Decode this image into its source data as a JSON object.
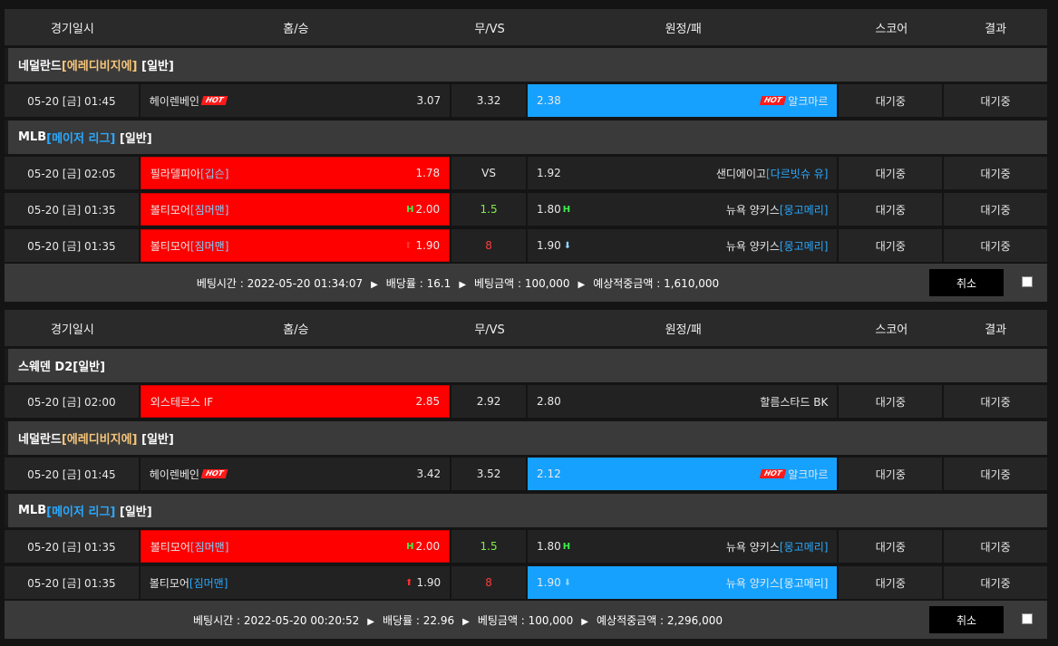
{
  "headers": [
    "경기일시",
    "홈/승",
    "무/VS",
    "원정/패",
    "스코어",
    "결과"
  ],
  "hot_label": "HOT",
  "slips": [
    {
      "groups": [
        {
          "league": "네덜란드",
          "tag": "[에레디비지에]",
          "tag_color": "orange",
          "type": "[일반]",
          "rows": [
            {
              "date": "05-20 [금] 01:45",
              "home": "헤이렌베인",
              "home_hot": true,
              "home_odds": "3.07",
              "draw": "3.32",
              "away_odds": "2.38",
              "away": "알크마르",
              "away_hot": true,
              "score": "대기중",
              "result": "대기중",
              "selected": "away"
            }
          ]
        },
        {
          "league": "MLB",
          "tag": "[메이저 리그]",
          "tag_color": "blue",
          "type": "[일반]",
          "rows": [
            {
              "date": "05-20 [금] 02:05",
              "home": "필라델피아",
              "home_tag": "[깁슨]",
              "home_odds": "1.78",
              "draw": "VS",
              "away_odds": "1.92",
              "away": "샌디에이고",
              "away_tag": "[다르빗슈 유]",
              "score": "대기중",
              "result": "대기중",
              "selected": "home"
            },
            {
              "date": "05-20 [금] 01:35",
              "home": "볼티모어",
              "home_tag": "[짐머맨]",
              "home_odds": "2.00",
              "home_icon": "H",
              "draw": "1.5",
              "draw_color": "green",
              "away_odds": "1.80",
              "away_icon": "H",
              "away": "뉴욕 양키스",
              "away_tag": "[몽고메리]",
              "score": "대기중",
              "result": "대기중",
              "selected": "home"
            },
            {
              "date": "05-20 [금] 01:35",
              "home": "볼티모어",
              "home_tag": "[짐머맨]",
              "home_odds": "1.90",
              "home_icon": "up",
              "draw": "8",
              "draw_color": "red",
              "away_odds": "1.90",
              "away_icon": "down",
              "away": "뉴욕 양키스",
              "away_tag": "[몽고메리]",
              "score": "대기중",
              "result": "대기중",
              "selected": "home"
            }
          ]
        }
      ],
      "summary": {
        "time": "베팅시간 : 2022-05-20 01:34:07",
        "rate": "배당률 : 16.1",
        "amount": "베팅금액 : 100,000",
        "expected": "예상적중금액 : 1,610,000"
      },
      "cancel": "취소"
    },
    {
      "groups": [
        {
          "league": "스웨덴 D2",
          "tag": "",
          "tag_color": "",
          "type": "[일반]",
          "rows": [
            {
              "date": "05-20 [금] 02:00",
              "home": "외스테르스 IF",
              "home_odds": "2.85",
              "draw": "2.92",
              "away_odds": "2.80",
              "away": "할름스타드 BK",
              "score": "대기중",
              "result": "대기중",
              "selected": "home"
            }
          ]
        },
        {
          "league": "네덜란드",
          "tag": "[에레디비지에]",
          "tag_color": "orange",
          "type": "[일반]",
          "rows": [
            {
              "date": "05-20 [금] 01:45",
              "home": "헤이렌베인",
              "home_hot": true,
              "home_odds": "3.42",
              "draw": "3.52",
              "away_odds": "2.12",
              "away": "알크마르",
              "away_hot": true,
              "score": "대기중",
              "result": "대기중",
              "selected": "away"
            }
          ]
        },
        {
          "league": "MLB",
          "tag": "[메이저 리그]",
          "tag_color": "blue",
          "type": "[일반]",
          "rows": [
            {
              "date": "05-20 [금] 01:35",
              "home": "볼티모어",
              "home_tag": "[짐머맨]",
              "home_odds": "2.00",
              "home_icon": "H",
              "draw": "1.5",
              "draw_color": "green",
              "away_odds": "1.80",
              "away_icon": "H",
              "away": "뉴욕 양키스",
              "away_tag": "[몽고메리]",
              "score": "대기중",
              "result": "대기중",
              "selected": "home"
            },
            {
              "date": "05-20 [금] 01:35",
              "home": "볼티모어",
              "home_tag": "[짐머맨]",
              "home_odds": "1.90",
              "home_icon": "up",
              "draw": "8",
              "draw_color": "red",
              "away_odds": "1.90",
              "away_icon": "down",
              "away": "뉴욕 양키스",
              "away_tag": "[몽고메리]",
              "score": "대기중",
              "result": "대기중",
              "selected": "away"
            }
          ]
        }
      ],
      "summary": {
        "time": "베팅시간 : 2022-05-20 00:20:52",
        "rate": "배당률 : 22.96",
        "amount": "베팅금액 : 100,000",
        "expected": "예상적중금액 : 2,296,000"
      },
      "cancel": "취소"
    }
  ]
}
